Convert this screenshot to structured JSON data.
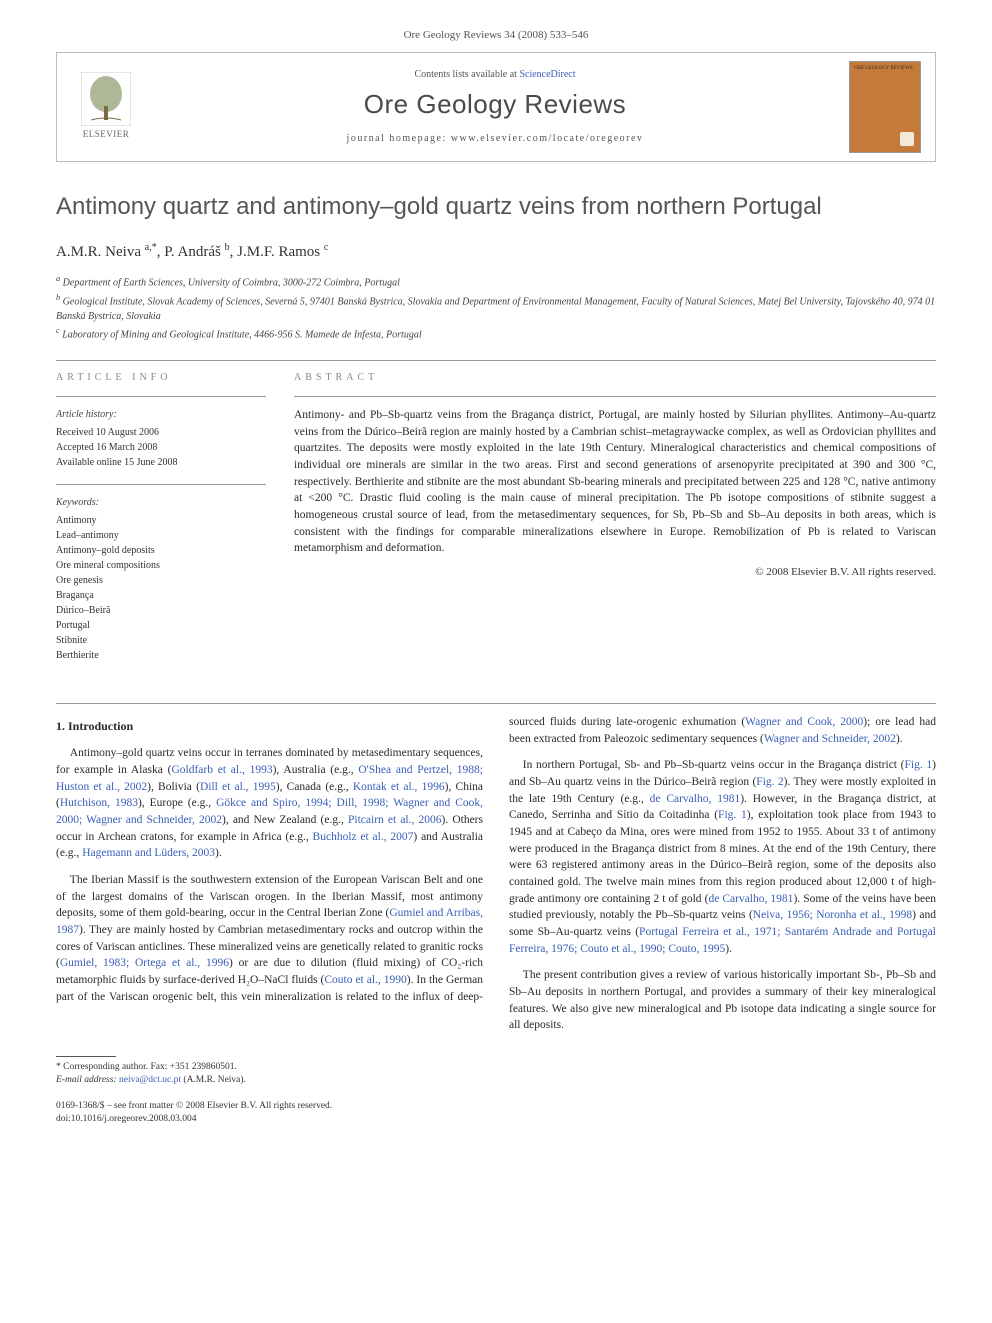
{
  "header_line": "Ore Geology Reviews 34 (2008) 533–546",
  "masthead": {
    "publisher_label": "ELSEVIER",
    "contents_prefix": "Contents lists available at ",
    "contents_link": "ScienceDirect",
    "journal_name": "Ore Geology Reviews",
    "homepage_label": "journal homepage: www.elsevier.com/locate/oregeorev",
    "cover_text": "ORE GEOLOGY REVIEWS"
  },
  "title": "Antimony quartz and antimony–gold quartz veins from northern Portugal",
  "authors_html": "A.M.R. Neiva <sup>a,*</sup>, P. Andráš <sup>b</sup>, J.M.F. Ramos <sup>c</sup>",
  "affiliations": [
    "a Department of Earth Sciences, University of Coimbra, 3000-272 Coimbra, Portugal",
    "b Geological Institute, Slovak Academy of Sciences, Severná 5, 97401 Banská Bystrica, Slovakia and Department of Environmental Management, Faculty of Natural Sciences, Matej Bel University, Tajovského 40, 974 01 Banská Bystrica, Slovakia",
    "c Laboratory of Mining and Geological Institute, 4466-956 S. Mamede de Infesta, Portugal"
  ],
  "article_info": {
    "heading": "ARTICLE INFO",
    "history_label": "Article history:",
    "history": [
      "Received 10 August 2006",
      "Accepted 16 March 2008",
      "Available online 15 June 2008"
    ],
    "keywords_label": "Keywords:",
    "keywords": [
      "Antimony",
      "Lead–antimony",
      "Antimony–gold deposits",
      "Ore mineral compositions",
      "Ore genesis",
      "Bragança",
      "Dúrico–Beirã",
      "Portugal",
      "Stibnite",
      "Berthierite"
    ]
  },
  "abstract": {
    "heading": "ABSTRACT",
    "text": "Antimony- and Pb–Sb-quartz veins from the Bragança district, Portugal, are mainly hosted by Silurian phyllites. Antimony–Au-quartz veins from the Dúrico–Beirã region are mainly hosted by a Cambrian schist–metagraywacke complex, as well as Ordovician phyllites and quartzites. The deposits were mostly exploited in the late 19th Century. Mineralogical characteristics and chemical compositions of individual ore minerals are similar in the two areas. First and second generations of arsenopyrite precipitated at 390 and 300 °C, respectively. Berthierite and stibnite are the most abundant Sb-bearing minerals and precipitated between 225 and 128 °C, native antimony at <200 °C. Drastic fluid cooling is the main cause of mineral precipitation. The Pb isotope compositions of stibnite suggest a homogeneous crustal source of lead, from the metasedimentary sequences, for Sb, Pb–Sb and Sb–Au deposits in both areas, which is consistent with the findings for comparable mineralizations elsewhere in Europe. Remobilization of Pb is related to Variscan metamorphism and deformation.",
    "copyright": "© 2008 Elsevier B.V. All rights reserved."
  },
  "section1": {
    "heading": "1. Introduction",
    "p1_a": "Antimony–gold quartz veins occur in terranes dominated by metasedimentary sequences, for example in Alaska (",
    "c1": "Goldfarb et al., 1993",
    "p1_b": "), Australia (e.g., ",
    "c2": "O'Shea and Pertzel, 1988; Huston et al., 2002",
    "p1_c": "), Bolivia (",
    "c3": "Dill et al., 1995",
    "p1_d": "), Canada (e.g., ",
    "c4": "Kontak et al., 1996",
    "p1_e": "), China (",
    "c5": "Hutchison, 1983",
    "p1_f": "), Europe (e.g., ",
    "c6": "Gökce and Spiro, 1994; Dill, 1998; Wagner and Cook, 2000; Wagner and Schneider, 2002",
    "p1_g": "), and New Zealand (e.g., ",
    "c7": "Pitcairn et al., 2006",
    "p1_h": "). Others occur in Archean cratons, for example in Africa (e.g., ",
    "c8": "Buchholz et al., 2007",
    "p1_i": ") and Australia (e.g., ",
    "c9": "Hagemann and Lüders, 2003",
    "p1_j": ").",
    "p2_a": "The Iberian Massif is the southwestern extension of the European Variscan Belt and one of the largest domains of the Variscan orogen. In the Iberian Massif, most antimony deposits, some of them gold-bearing, occur in the Central Iberian Zone (",
    "c10": "Gumiel and Arribas, 1987",
    "p2_b": "). They are mainly hosted by Cambrian metasedimentary rocks and outcrop within the cores of Variscan anticlines. These mineralized veins are genetically related to granitic rocks (",
    "c11": "Gumiel, 1983; Ortega et al., 1996",
    "p2_c": ") or are due to dilution (fluid mixing) of CO₂-rich metamorphic fluids by surface-derived H₂O–NaCl fluids (",
    "c12": "Couto et al., 1990",
    "p2_d": "). In the German part of the Variscan orogenic belt, this vein mineralization is related to the influx of deep-sourced fluids during late-orogenic exhumation (",
    "c13": "Wagner and Cook, 2000",
    "p2_e": "); ore lead had been extracted from Paleozoic sedimentary sequences (",
    "c14": "Wagner and Schneider, 2002",
    "p2_f": ").",
    "p3_a": "In northern Portugal, Sb- and Pb–Sb-quartz veins occur in the Bragança district (",
    "c15": "Fig. 1",
    "p3_b": ") and Sb–Au quartz veins in the Dúrico–Beirã region (",
    "c16": "Fig. 2",
    "p3_c": "). They were mostly exploited in the late 19th Century (e.g., ",
    "c17": "de Carvalho, 1981",
    "p3_d": "). However, in the Bragança district, at Canedo, Serrinha and Sítio da Coitadinha (",
    "c18": "Fig. 1",
    "p3_e": "), exploitation took place from 1943 to 1945 and at Cabeço da Mina, ores were mined from 1952 to 1955. About 33 t of antimony were produced in the Bragança district from 8 mines. At the end of the 19th Century, there were 63 registered antimony areas in the Dúrico–Beirã region, some of the deposits also contained gold. The twelve main mines from this region produced about 12,000 t of high-grade antimony ore containing 2 t of gold (",
    "c19": "de Carvalho, 1981",
    "p3_f": "). Some of the veins have been studied previously, notably the Pb–Sb-quartz veins (",
    "c20": "Neiva, 1956; Noronha et al., 1998",
    "p3_g": ") and some Sb–Au-quartz veins (",
    "c21": "Portugal Ferreira et al., 1971; Santarém Andrade and Portugal Ferreira, 1976; Couto et al., 1990; Couto, 1995",
    "p3_h": ").",
    "p4": "The present contribution gives a review of various historically important Sb-, Pb–Sb and Sb–Au deposits in northern Portugal, and provides a summary of their key mineralogical features. We also give new mineralogical and Pb isotope data indicating a single source for all deposits."
  },
  "footnotes": {
    "corr": "* Corresponding author. Fax: +351 239860501.",
    "email_label": "E-mail address:",
    "email": "neiva@dct.uc.pt",
    "email_who": "(A.M.R. Neiva)."
  },
  "front_matter": {
    "line1": "0169-1368/$ – see front matter © 2008 Elsevier B.V. All rights reserved.",
    "line2": "doi:10.1016/j.oregeorev.2008.03.004"
  }
}
